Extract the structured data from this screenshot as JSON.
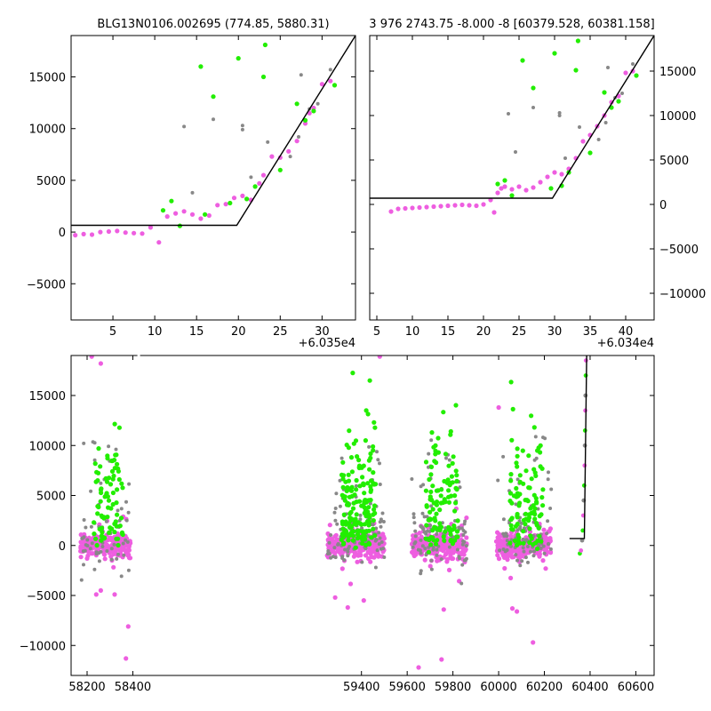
{
  "chart_data": [
    {
      "type": "scatter",
      "panel": "top-left",
      "title": "BLG13N0106.002695 (774.85, 5880.31)",
      "offset_label": "+6.035e4",
      "xlim": [
        0,
        34
      ],
      "ylim": [
        -8500,
        19000
      ],
      "xticks": [
        5,
        10,
        15,
        20,
        25,
        30
      ],
      "yticks": [
        -5000,
        0,
        5000,
        10000,
        15000
      ],
      "ytick_side": "left",
      "colors": {
        "magenta": "#ee5ee0",
        "green": "#22ee00",
        "gray": "#888888",
        "model": "#000000"
      },
      "model": {
        "x": [
          0,
          19.8,
          34
        ],
        "y": [
          650,
          650,
          19000
        ]
      },
      "series": [
        {
          "color": "magenta",
          "points": [
            [
              0.5,
              -300
            ],
            [
              1.5,
              -200
            ],
            [
              2.5,
              -250
            ],
            [
              3.5,
              0
            ],
            [
              4.5,
              50
            ],
            [
              5.5,
              100
            ],
            [
              6.5,
              -50
            ],
            [
              7.5,
              -100
            ],
            [
              8.5,
              -150
            ],
            [
              9.5,
              450
            ],
            [
              10.5,
              -1000
            ],
            [
              11.5,
              1500
            ],
            [
              12.5,
              1800
            ],
            [
              13.5,
              2000
            ],
            [
              14.5,
              1700
            ],
            [
              15.5,
              1300
            ],
            [
              16.5,
              1600
            ],
            [
              17.5,
              2600
            ],
            [
              18.5,
              2700
            ],
            [
              19.5,
              3300
            ],
            [
              20.5,
              3500
            ],
            [
              21.5,
              3100
            ],
            [
              22.5,
              4700
            ],
            [
              23,
              5500
            ],
            [
              24,
              7300
            ],
            [
              25,
              7200
            ],
            [
              26,
              7800
            ],
            [
              27,
              8800
            ],
            [
              28,
              10500
            ],
            [
              28.5,
              11500
            ],
            [
              29,
              12000
            ],
            [
              30,
              14300
            ],
            [
              31,
              14600
            ]
          ]
        },
        {
          "color": "green",
          "points": [
            [
              11,
              2100
            ],
            [
              12,
              3000
            ],
            [
              13,
              600
            ],
            [
              15.5,
              16000
            ],
            [
              16,
              1700
            ],
            [
              17,
              13100
            ],
            [
              19,
              2800
            ],
            [
              20,
              16800
            ],
            [
              21,
              3200
            ],
            [
              22,
              4400
            ],
            [
              23,
              15000
            ],
            [
              23.2,
              18100
            ],
            [
              25,
              6000
            ],
            [
              27,
              12400
            ],
            [
              28,
              10800
            ],
            [
              29,
              11700
            ],
            [
              31.5,
              14200
            ]
          ]
        },
        {
          "color": "gray",
          "points": [
            [
              13.5,
              10200
            ],
            [
              14.5,
              3800
            ],
            [
              17,
              10900
            ],
            [
              20.5,
              10300
            ],
            [
              20.5,
              9900
            ],
            [
              21.5,
              5300
            ],
            [
              23.5,
              8700
            ],
            [
              26.2,
              7300
            ],
            [
              27.2,
              9200
            ],
            [
              27.5,
              15200
            ],
            [
              28.5,
              11900
            ],
            [
              29.5,
              12400
            ],
            [
              31,
              15700
            ]
          ]
        }
      ]
    },
    {
      "type": "scatter",
      "panel": "top-right",
      "title": "3 976 2743.75 -8.000 -8 [60379.528, 60381.158]",
      "offset_label": "+6.034e4",
      "xlim": [
        4,
        44
      ],
      "ylim": [
        -13000,
        19000
      ],
      "xticks": [
        5,
        10,
        15,
        20,
        25,
        30,
        35,
        40
      ],
      "yticks": [
        -10000,
        -5000,
        0,
        5000,
        10000,
        15000
      ],
      "ytick_side": "right",
      "colors": {
        "magenta": "#ee5ee0",
        "green": "#22ee00",
        "gray": "#888888",
        "model": "#000000"
      },
      "model": {
        "x": [
          4,
          29.7,
          44
        ],
        "y": [
          700,
          700,
          19000
        ]
      },
      "series": [
        {
          "color": "magenta",
          "points": [
            [
              7,
              -800
            ],
            [
              8,
              -500
            ],
            [
              9,
              -450
            ],
            [
              10,
              -400
            ],
            [
              11,
              -350
            ],
            [
              12,
              -300
            ],
            [
              13,
              -250
            ],
            [
              14,
              -200
            ],
            [
              15,
              -150
            ],
            [
              16,
              -100
            ],
            [
              17,
              -50
            ],
            [
              18,
              -100
            ],
            [
              19,
              -150
            ],
            [
              20,
              0
            ],
            [
              21,
              500
            ],
            [
              21.5,
              -900
            ],
            [
              22,
              1300
            ],
            [
              22.5,
              1800
            ],
            [
              23,
              2000
            ],
            [
              24,
              1700
            ],
            [
              25,
              2000
            ],
            [
              26,
              1600
            ],
            [
              27,
              1900
            ],
            [
              28,
              2500
            ],
            [
              29,
              3100
            ],
            [
              30,
              3600
            ],
            [
              31,
              3400
            ],
            [
              32,
              4000
            ],
            [
              33,
              5200
            ],
            [
              34,
              7100
            ],
            [
              35,
              7800
            ],
            [
              36,
              8800
            ],
            [
              37,
              10000
            ],
            [
              38,
              11500
            ],
            [
              39,
              12200
            ],
            [
              40,
              14800
            ],
            [
              41,
              15000
            ]
          ]
        },
        {
          "color": "green",
          "points": [
            [
              22,
              2300
            ],
            [
              23,
              2700
            ],
            [
              24,
              1000
            ],
            [
              25.5,
              16200
            ],
            [
              27,
              13100
            ],
            [
              29.5,
              1800
            ],
            [
              30,
              17000
            ],
            [
              31,
              2100
            ],
            [
              32,
              3600
            ],
            [
              33,
              15100
            ],
            [
              33.3,
              18400
            ],
            [
              35,
              5800
            ],
            [
              37,
              12600
            ],
            [
              38,
              10900
            ],
            [
              39,
              11600
            ],
            [
              41.5,
              14500
            ]
          ]
        },
        {
          "color": "gray",
          "points": [
            [
              23.5,
              10200
            ],
            [
              24.5,
              5900
            ],
            [
              27,
              10900
            ],
            [
              30.7,
              10300
            ],
            [
              30.7,
              10000
            ],
            [
              31.5,
              5200
            ],
            [
              33.5,
              8700
            ],
            [
              36.2,
              7300
            ],
            [
              37.2,
              9200
            ],
            [
              37.5,
              15400
            ],
            [
              38.5,
              12000
            ],
            [
              39.5,
              12500
            ],
            [
              41,
              15800
            ]
          ]
        }
      ]
    },
    {
      "type": "scatter",
      "panel": "bottom",
      "xlim": [
        58130,
        60680
      ],
      "ylim": [
        -13000,
        19000
      ],
      "xticks": [
        58200,
        58400,
        59400,
        59600,
        59800,
        60000,
        60200,
        60400,
        60600
      ],
      "yticks": [
        -10000,
        -5000,
        0,
        5000,
        10000,
        15000
      ],
      "ytick_side": "left",
      "colors": {
        "magenta": "#ee5ee0",
        "green": "#22ee00",
        "gray": "#888888",
        "model": "#000000"
      },
      "model": {
        "x": [
          60310,
          60375,
          60385
        ],
        "y": [
          700,
          700,
          19000
        ]
      },
      "seasons": [
        {
          "x": [
            58170,
            58390
          ],
          "n_mag": 220,
          "n_gray": 70,
          "n_green": 80
        },
        {
          "x": [
            59250,
            59500
          ],
          "n_mag": 320,
          "n_gray": 110,
          "n_green": 170
        },
        {
          "x": [
            59620,
            59860
          ],
          "n_mag": 280,
          "n_gray": 90,
          "n_green": 110
        },
        {
          "x": [
            59990,
            60230
          ],
          "n_mag": 280,
          "n_gray": 90,
          "n_green": 100
        }
      ],
      "seeded_outliers": [
        [
          58240,
          -4900
        ],
        [
          58260,
          -4500
        ],
        [
          58380,
          -8100
        ],
        [
          58370,
          -11300
        ],
        [
          58220,
          18900
        ],
        [
          58260,
          18200
        ],
        [
          59285,
          -5200
        ],
        [
          59340,
          -6200
        ],
        [
          59410,
          -5500
        ],
        [
          59480,
          18900
        ],
        [
          59650,
          -12200
        ],
        [
          59750,
          -11400
        ],
        [
          59760,
          -6400
        ],
        [
          60060,
          -6300
        ],
        [
          60080,
          -6600
        ],
        [
          60150,
          -9700
        ],
        [
          60000,
          13800
        ]
      ],
      "rise_points": [
        [
          60355,
          -800
        ],
        [
          60360,
          -500
        ],
        [
          60365,
          500
        ],
        [
          60368,
          1500
        ],
        [
          60370,
          3000
        ],
        [
          60372,
          4500
        ],
        [
          60374,
          6000
        ],
        [
          60376,
          8000
        ],
        [
          60377,
          10000
        ],
        [
          60378,
          11500
        ],
        [
          60379,
          13500
        ],
        [
          60380,
          15000
        ],
        [
          60381,
          17000
        ],
        [
          60382,
          18500
        ]
      ]
    }
  ]
}
